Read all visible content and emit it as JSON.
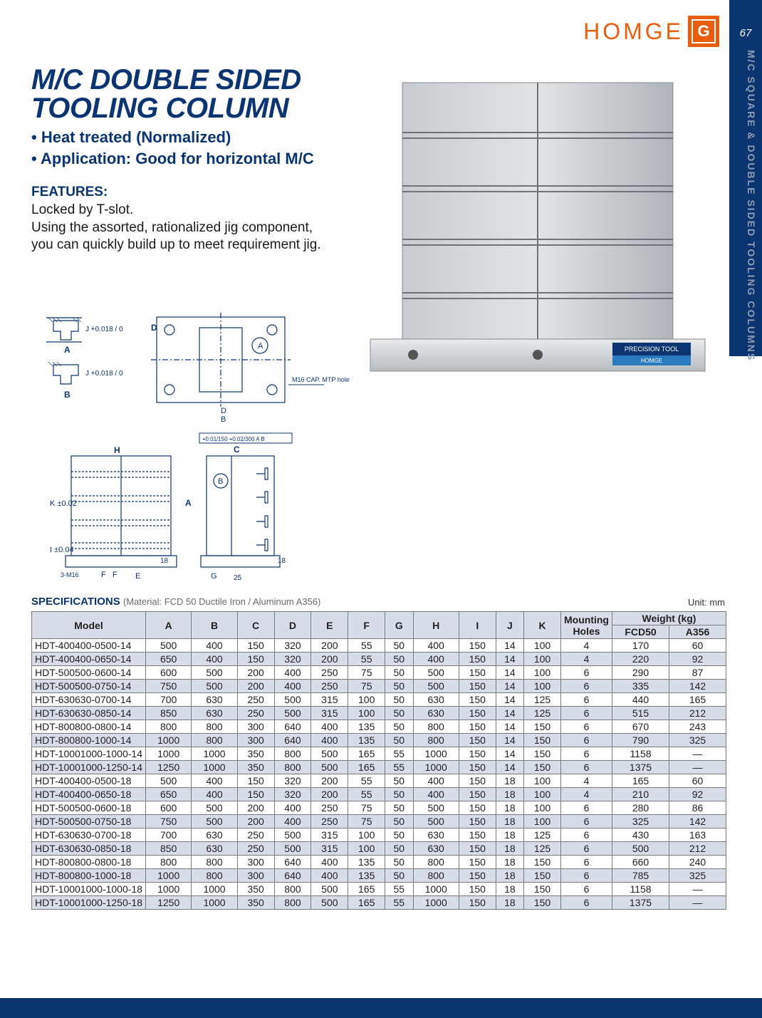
{
  "page": {
    "number": "67",
    "side_title": "M/C SQUARE & DOUBLE SIDED TOOLING COLUMNS"
  },
  "brand": {
    "name": "HOMGE",
    "mark": "G"
  },
  "heading": {
    "line1": "M/C DOUBLE SIDED",
    "line2": "TOOLING COLUMN"
  },
  "bullets": {
    "b1": "• Heat treated (Normalized)",
    "b2": "• Application: Good for horizontal M/C"
  },
  "features": {
    "header": "FEATURES:",
    "l1": "Locked by T-slot.",
    "l2": "Using the assorted, rationalized jig component,",
    "l3": "you can quickly build up to meet requirement jig."
  },
  "photo": {
    "badge1": "PRECISION TOOL",
    "badge2": "HOMGE"
  },
  "diagram": {
    "tol_j": "J +0.018 / 0",
    "lbl_A": "A",
    "lbl_B": "B",
    "lbl_C": "C",
    "lbl_D": "D",
    "lbl_E": "E",
    "lbl_F": "F",
    "lbl_G": "G",
    "lbl_H": "H",
    "lbl_I": "I ±0.04",
    "lbl_K": "K ±0.02",
    "note_cap": "M16 CAP. MTP hole",
    "note_m16": "3-M16",
    "d18a": "18",
    "d18b": "18",
    "d25": "25",
    "gd_box": "⌖0.01/150  ⌖0.02/300  A B"
  },
  "spec": {
    "heading": "SPECIFICATIONS",
    "material": "(Material: FCD 50 Ductile Iron / Aluminum A356)",
    "unit": "Unit: mm",
    "headers": {
      "model": "Model",
      "A": "A",
      "B": "B",
      "C": "C",
      "D": "D",
      "E": "E",
      "F": "F",
      "G": "G",
      "H": "H",
      "I": "I",
      "J": "J",
      "K": "K",
      "mh": "Mounting\nHoles",
      "weight": "Weight (kg)",
      "w1": "FCD50",
      "w2": "A356"
    },
    "rows": [
      {
        "m": "HDT-400400-0500-14",
        "A": "500",
        "B": "400",
        "C": "150",
        "D": "320",
        "E": "200",
        "F": "55",
        "G": "50",
        "H": "400",
        "I": "150",
        "J": "14",
        "K": "100",
        "MH": "4",
        "W1": "170",
        "W2": "60"
      },
      {
        "m": "HDT-400400-0650-14",
        "A": "650",
        "B": "400",
        "C": "150",
        "D": "320",
        "E": "200",
        "F": "55",
        "G": "50",
        "H": "400",
        "I": "150",
        "J": "14",
        "K": "100",
        "MH": "4",
        "W1": "220",
        "W2": "92"
      },
      {
        "m": "HDT-500500-0600-14",
        "A": "600",
        "B": "500",
        "C": "200",
        "D": "400",
        "E": "250",
        "F": "75",
        "G": "50",
        "H": "500",
        "I": "150",
        "J": "14",
        "K": "100",
        "MH": "6",
        "W1": "290",
        "W2": "87"
      },
      {
        "m": "HDT-500500-0750-14",
        "A": "750",
        "B": "500",
        "C": "200",
        "D": "400",
        "E": "250",
        "F": "75",
        "G": "50",
        "H": "500",
        "I": "150",
        "J": "14",
        "K": "100",
        "MH": "6",
        "W1": "335",
        "W2": "142"
      },
      {
        "m": "HDT-630630-0700-14",
        "A": "700",
        "B": "630",
        "C": "250",
        "D": "500",
        "E": "315",
        "F": "100",
        "G": "50",
        "H": "630",
        "I": "150",
        "J": "14",
        "K": "125",
        "MH": "6",
        "W1": "440",
        "W2": "165"
      },
      {
        "m": "HDT-630630-0850-14",
        "A": "850",
        "B": "630",
        "C": "250",
        "D": "500",
        "E": "315",
        "F": "100",
        "G": "50",
        "H": "630",
        "I": "150",
        "J": "14",
        "K": "125",
        "MH": "6",
        "W1": "515",
        "W2": "212"
      },
      {
        "m": "HDT-800800-0800-14",
        "A": "800",
        "B": "800",
        "C": "300",
        "D": "640",
        "E": "400",
        "F": "135",
        "G": "50",
        "H": "800",
        "I": "150",
        "J": "14",
        "K": "150",
        "MH": "6",
        "W1": "670",
        "W2": "243"
      },
      {
        "m": "HDT-800800-1000-14",
        "A": "1000",
        "B": "800",
        "C": "300",
        "D": "640",
        "E": "400",
        "F": "135",
        "G": "50",
        "H": "800",
        "I": "150",
        "J": "14",
        "K": "150",
        "MH": "6",
        "W1": "790",
        "W2": "325"
      },
      {
        "m": "HDT-10001000-1000-14",
        "A": "1000",
        "B": "1000",
        "C": "350",
        "D": "800",
        "E": "500",
        "F": "165",
        "G": "55",
        "H": "1000",
        "I": "150",
        "J": "14",
        "K": "150",
        "MH": "6",
        "W1": "1158",
        "W2": "—"
      },
      {
        "m": "HDT-10001000-1250-14",
        "A": "1250",
        "B": "1000",
        "C": "350",
        "D": "800",
        "E": "500",
        "F": "165",
        "G": "55",
        "H": "1000",
        "I": "150",
        "J": "14",
        "K": "150",
        "MH": "6",
        "W1": "1375",
        "W2": "—"
      },
      {
        "m": "HDT-400400-0500-18",
        "A": "500",
        "B": "400",
        "C": "150",
        "D": "320",
        "E": "200",
        "F": "55",
        "G": "50",
        "H": "400",
        "I": "150",
        "J": "18",
        "K": "100",
        "MH": "4",
        "W1": "165",
        "W2": "60"
      },
      {
        "m": "HDT-400400-0650-18",
        "A": "650",
        "B": "400",
        "C": "150",
        "D": "320",
        "E": "200",
        "F": "55",
        "G": "50",
        "H": "400",
        "I": "150",
        "J": "18",
        "K": "100",
        "MH": "4",
        "W1": "210",
        "W2": "92"
      },
      {
        "m": "HDT-500500-0600-18",
        "A": "600",
        "B": "500",
        "C": "200",
        "D": "400",
        "E": "250",
        "F": "75",
        "G": "50",
        "H": "500",
        "I": "150",
        "J": "18",
        "K": "100",
        "MH": "6",
        "W1": "280",
        "W2": "86"
      },
      {
        "m": "HDT-500500-0750-18",
        "A": "750",
        "B": "500",
        "C": "200",
        "D": "400",
        "E": "250",
        "F": "75",
        "G": "50",
        "H": "500",
        "I": "150",
        "J": "18",
        "K": "100",
        "MH": "6",
        "W1": "325",
        "W2": "142"
      },
      {
        "m": "HDT-630630-0700-18",
        "A": "700",
        "B": "630",
        "C": "250",
        "D": "500",
        "E": "315",
        "F": "100",
        "G": "50",
        "H": "630",
        "I": "150",
        "J": "18",
        "K": "125",
        "MH": "6",
        "W1": "430",
        "W2": "163"
      },
      {
        "m": "HDT-630630-0850-18",
        "A": "850",
        "B": "630",
        "C": "250",
        "D": "500",
        "E": "315",
        "F": "100",
        "G": "50",
        "H": "630",
        "I": "150",
        "J": "18",
        "K": "125",
        "MH": "6",
        "W1": "500",
        "W2": "212"
      },
      {
        "m": "HDT-800800-0800-18",
        "A": "800",
        "B": "800",
        "C": "300",
        "D": "640",
        "E": "400",
        "F": "135",
        "G": "50",
        "H": "800",
        "I": "150",
        "J": "18",
        "K": "150",
        "MH": "6",
        "W1": "660",
        "W2": "240"
      },
      {
        "m": "HDT-800800-1000-18",
        "A": "1000",
        "B": "800",
        "C": "300",
        "D": "640",
        "E": "400",
        "F": "135",
        "G": "50",
        "H": "800",
        "I": "150",
        "J": "18",
        "K": "150",
        "MH": "6",
        "W1": "785",
        "W2": "325"
      },
      {
        "m": "HDT-10001000-1000-18",
        "A": "1000",
        "B": "1000",
        "C": "350",
        "D": "800",
        "E": "500",
        "F": "165",
        "G": "55",
        "H": "1000",
        "I": "150",
        "J": "18",
        "K": "150",
        "MH": "6",
        "W1": "1158",
        "W2": "—"
      },
      {
        "m": "HDT-10001000-1250-18",
        "A": "1250",
        "B": "1000",
        "C": "350",
        "D": "800",
        "E": "500",
        "F": "165",
        "G": "55",
        "H": "1000",
        "I": "150",
        "J": "18",
        "K": "150",
        "MH": "6",
        "W1": "1375",
        "W2": "—"
      }
    ]
  },
  "colors": {
    "navy": "#0b3570",
    "orange": "#e95d0f",
    "table_shade": "#d6dde8",
    "side_text": "#8d9bb4",
    "metal1": "#cfd4d8",
    "metal2": "#a9afb5"
  }
}
